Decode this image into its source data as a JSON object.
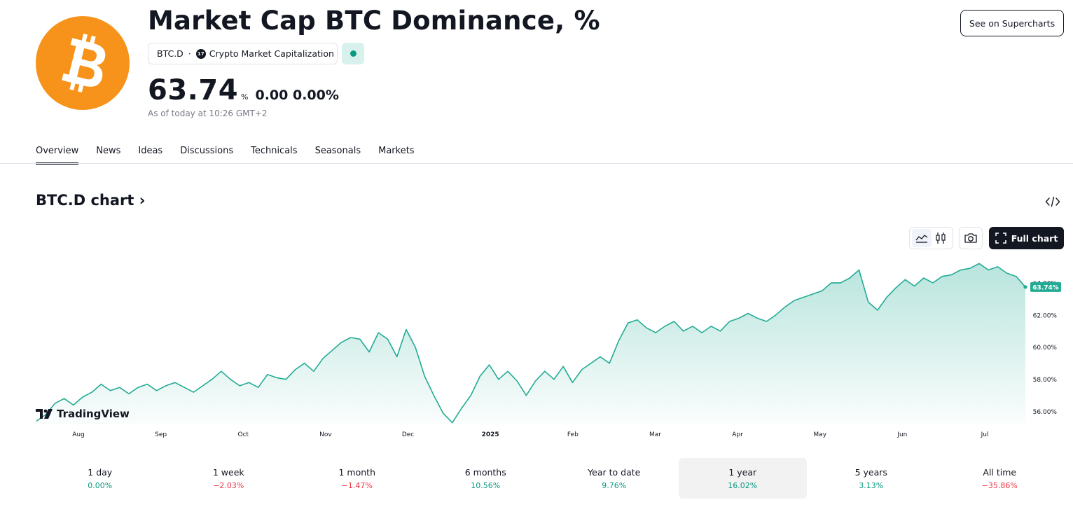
{
  "header": {
    "title": "Market Cap BTC Dominance, %",
    "symbol": "BTC.D",
    "separator": "·",
    "exchange": "Crypto Market Capitalization",
    "exchange_icon": "tv-icon",
    "logo_icon": "bitcoin-icon",
    "status": "market-open-dot",
    "price": "63.74",
    "unit": "%",
    "change": "0.00 0.00%",
    "as_of": "As of today at 10:26 GMT+2",
    "supercharts_label": "See on Supercharts"
  },
  "tabs": [
    {
      "label": "Overview",
      "active": true
    },
    {
      "label": "News",
      "active": false
    },
    {
      "label": "Ideas",
      "active": false
    },
    {
      "label": "Discussions",
      "active": false
    },
    {
      "label": "Technicals",
      "active": false
    },
    {
      "label": "Seasonals",
      "active": false
    },
    {
      "label": "Markets",
      "active": false
    }
  ],
  "chart_section": {
    "heading": "BTC.D chart",
    "heading_icon": "chevron-right-icon",
    "embed_icon": "code-icon",
    "toolbar": {
      "line_chart_icon": "area-chart-icon",
      "candles_icon": "candlestick-icon",
      "camera_icon": "camera-icon",
      "full_chart_label": "Full chart",
      "full_chart_icon": "fullscreen-icon"
    },
    "watermark": "TradingView"
  },
  "chart_data": {
    "type": "area",
    "x_ticks": [
      "Aug",
      "Sep",
      "Oct",
      "Nov",
      "Dec",
      "2025",
      "Feb",
      "Mar",
      "Apr",
      "May",
      "Jun",
      "Jul"
    ],
    "y_ticks": [
      "56.00%",
      "58.00%",
      "60.00%",
      "62.00%",
      "64.00%"
    ],
    "ylim": [
      55.2,
      65.3
    ],
    "last_value_label": "63.74%",
    "last_value": 63.74,
    "series": [
      {
        "color": "#22ab94",
        "values": [
          55.4,
          55.8,
          56.5,
          56.8,
          56.4,
          56.9,
          57.2,
          57.7,
          57.3,
          57.5,
          57.1,
          57.5,
          57.7,
          57.3,
          57.6,
          57.8,
          57.5,
          57.2,
          57.6,
          58.0,
          58.5,
          58.0,
          57.6,
          57.8,
          57.5,
          58.3,
          58.1,
          58.0,
          58.6,
          59.0,
          58.5,
          59.3,
          59.8,
          60.3,
          60.6,
          60.5,
          59.7,
          60.9,
          60.5,
          59.4,
          61.1,
          60.0,
          58.2,
          57.0,
          55.9,
          55.3,
          56.2,
          57.0,
          58.2,
          58.9,
          58.0,
          58.5,
          57.9,
          57.0,
          57.9,
          58.5,
          58.0,
          58.8,
          57.8,
          58.6,
          59.0,
          59.4,
          59.0,
          60.4,
          61.5,
          61.7,
          61.2,
          60.9,
          61.3,
          61.6,
          61.0,
          61.3,
          60.9,
          61.3,
          61.0,
          61.6,
          61.8,
          62.1,
          61.8,
          61.6,
          62.0,
          62.5,
          62.9,
          63.1,
          63.3,
          63.5,
          64.0,
          64.0,
          64.3,
          64.8,
          62.8,
          62.3,
          63.1,
          63.7,
          64.2,
          63.8,
          64.3,
          64.0,
          64.4,
          64.5,
          64.8,
          64.9,
          65.2,
          64.8,
          65.0,
          64.6,
          64.4,
          63.74
        ]
      }
    ]
  },
  "ranges": [
    {
      "label": "1 day",
      "value": "0.00%",
      "sign": "pos",
      "selected": false
    },
    {
      "label": "1 week",
      "value": "−2.03%",
      "sign": "neg",
      "selected": false
    },
    {
      "label": "1 month",
      "value": "−1.47%",
      "sign": "neg",
      "selected": false
    },
    {
      "label": "6 months",
      "value": "10.56%",
      "sign": "pos",
      "selected": false
    },
    {
      "label": "Year to date",
      "value": "9.76%",
      "sign": "pos",
      "selected": false
    },
    {
      "label": "1 year",
      "value": "16.02%",
      "sign": "pos",
      "selected": true
    },
    {
      "label": "5 years",
      "value": "3.13%",
      "sign": "pos",
      "selected": false
    },
    {
      "label": "All time",
      "value": "−35.86%",
      "sign": "neg",
      "selected": false
    }
  ]
}
